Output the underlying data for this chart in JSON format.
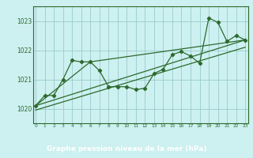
{
  "xlabel": "Graphe pression niveau de la mer (hPa)",
  "bg_color": "#cdf0f0",
  "plot_bg": "#cdf0f0",
  "grid_color": "#99cccc",
  "line_color": "#2d6a2d",
  "text_color": "#2d6a2d",
  "xlabel_bg": "#2d6a2d",
  "xlabel_fg": "#ffffff",
  "ylim": [
    1019.5,
    1023.5
  ],
  "xlim": [
    -0.3,
    23.3
  ],
  "yticks": [
    1020,
    1021,
    1022,
    1023
  ],
  "xticks": [
    0,
    1,
    2,
    3,
    4,
    5,
    6,
    7,
    8,
    9,
    10,
    11,
    12,
    13,
    14,
    15,
    16,
    17,
    18,
    19,
    20,
    21,
    22,
    23
  ],
  "main_x": [
    0,
    1,
    2,
    3,
    4,
    5,
    6,
    7,
    8,
    9,
    10,
    11,
    12,
    13,
    14,
    15,
    16,
    17,
    18,
    19,
    20,
    21,
    22,
    23
  ],
  "main_y": [
    1020.1,
    1020.45,
    1020.45,
    1021.0,
    1021.65,
    1021.6,
    1021.6,
    1021.3,
    1020.75,
    1020.75,
    1020.75,
    1020.65,
    1020.7,
    1021.2,
    1021.35,
    1021.85,
    1021.95,
    1021.8,
    1021.55,
    1023.1,
    1022.95,
    1022.3,
    1022.5,
    1022.35
  ],
  "trend1_x": [
    0,
    23
  ],
  "trend1_y": [
    1020.1,
    1022.35
  ],
  "trend2_x": [
    0,
    6,
    23
  ],
  "trend2_y": [
    1020.1,
    1021.6,
    1022.35
  ],
  "trend3_x": [
    0,
    23
  ],
  "trend3_y": [
    1019.95,
    1022.1
  ]
}
